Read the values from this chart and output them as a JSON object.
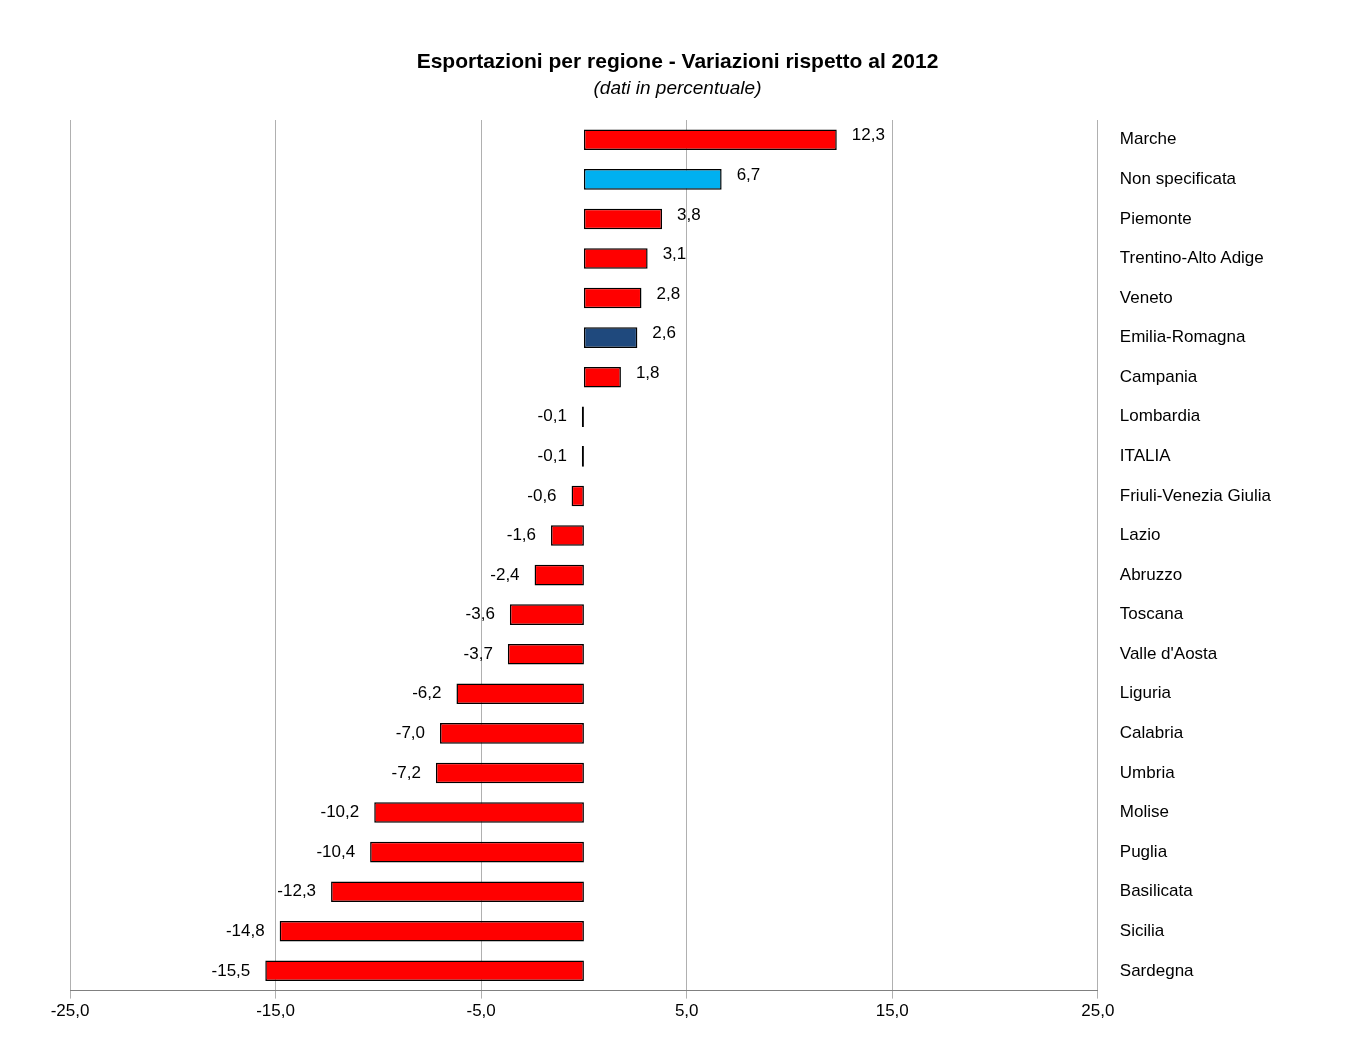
{
  "chart_data": {
    "type": "bar",
    "orientation": "horizontal",
    "title": "Esportazioni per regione - Variazioni rispetto al 2012",
    "subtitle": "(dati in percentuale)",
    "categories": [
      "Marche",
      "Non specificata",
      "Piemonte",
      "Trentino-Alto Adige",
      "Veneto",
      "Emilia-Romagna",
      "Campania",
      "Lombardia",
      "ITALIA",
      "Friuli-Venezia Giulia",
      "Lazio",
      "Abruzzo",
      "Toscana",
      "Valle d'Aosta",
      "Liguria",
      "Calabria",
      "Umbria",
      "Molise",
      "Puglia",
      "Basilicata",
      "Sicilia",
      "Sardegna"
    ],
    "values": [
      12.3,
      6.7,
      3.8,
      3.1,
      2.8,
      2.6,
      1.8,
      -0.1,
      -0.1,
      -0.6,
      -1.6,
      -2.4,
      -3.6,
      -3.7,
      -6.2,
      -7.0,
      -7.2,
      -10.2,
      -10.4,
      -12.3,
      -14.8,
      -15.5
    ],
    "value_labels": [
      "12,3",
      "6,7",
      "3,8",
      "3,1",
      "2,8",
      "2,6",
      "1,8",
      "-0,1",
      "-0,1",
      "-0,6",
      "-1,6",
      "-2,4",
      "-3,6",
      "-3,7",
      "-6,2",
      "-7,0",
      "-7,2",
      "-10,2",
      "-10,4",
      "-12,3",
      "-14,8",
      "-15,5"
    ],
    "colors": [
      "#ff0000",
      "#00b0f0",
      "#ff0000",
      "#ff0000",
      "#ff0000",
      "#1f497d",
      "#ff0000",
      "#000000",
      "#000000",
      "#ff0000",
      "#ff0000",
      "#ff0000",
      "#ff0000",
      "#ff0000",
      "#ff0000",
      "#ff0000",
      "#ff0000",
      "#ff0000",
      "#ff0000",
      "#ff0000",
      "#ff0000",
      "#ff0000"
    ],
    "xlim": [
      -25,
      25
    ],
    "xticks": [
      {
        "value": -25,
        "label": "-25,0"
      },
      {
        "value": -15,
        "label": "-15,0"
      },
      {
        "value": -5,
        "label": "-5,0"
      },
      {
        "value": 5,
        "label": "5,0"
      },
      {
        "value": 15,
        "label": "15,0"
      },
      {
        "value": 25,
        "label": "25,0"
      }
    ],
    "grid": "x",
    "legend": false
  }
}
